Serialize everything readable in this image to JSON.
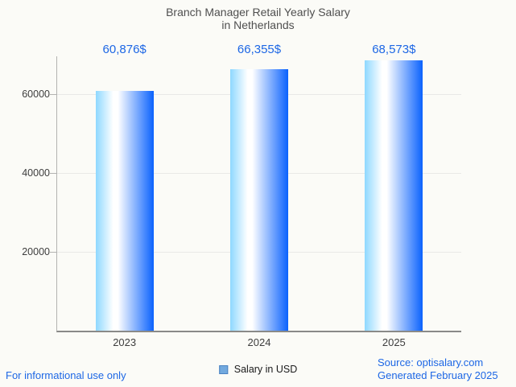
{
  "title": {
    "line1": "Branch Manager Retail Yearly Salary",
    "line2": "in Netherlands"
  },
  "chart_data": {
    "type": "bar",
    "title": "Branch Manager Retail Yearly Salary in Netherlands",
    "categories": [
      "2023",
      "2024",
      "2025"
    ],
    "values": [
      60876,
      66355,
      68573
    ],
    "value_labels": [
      "60,876$",
      "66,355$",
      "68,573$"
    ],
    "xlabel": "",
    "ylabel": "",
    "ylim": [
      0,
      69600
    ],
    "yticks": [
      20000,
      40000,
      60000
    ],
    "grid": true,
    "legend": {
      "label": "Salary in USD",
      "position": "bottom-center"
    },
    "bar_gradient": [
      "#8ed8ff",
      "#ffffff",
      "#0a62fd"
    ]
  },
  "footer": {
    "left": "For informational use only",
    "source": "Source: optisalary.com",
    "generated": "Generated February 2025"
  },
  "colors": {
    "background": "#fbfbf7",
    "accent_blue": "#1d67e5",
    "title_text": "#4f4f4f",
    "tick_text": "#3d3d3d",
    "axis_line": "#b3b3b1",
    "baseline": "#8a8a88",
    "gridline": "#e9e9e7",
    "legend_swatch_fill": "#72a9de",
    "legend_swatch_border": "#4a82c2"
  }
}
